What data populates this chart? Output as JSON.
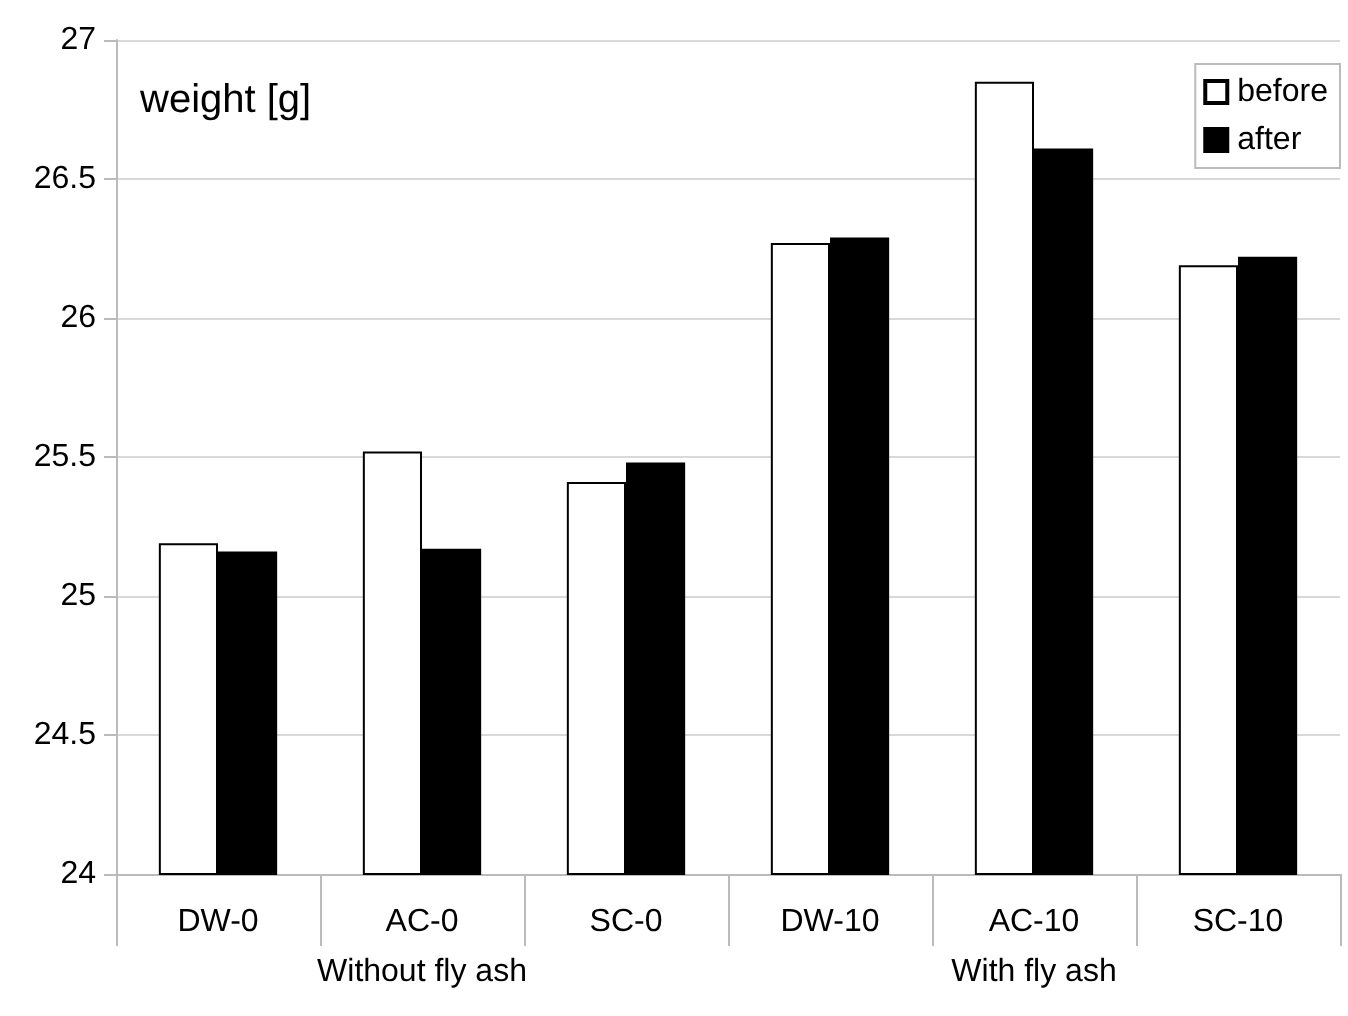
{
  "chart_data": {
    "type": "bar",
    "ylabel": "weight [g]",
    "categories": [
      "DW-0",
      "AC-0",
      "SC-0",
      "DW-10",
      "AC-10",
      "SC-10"
    ],
    "series": [
      {
        "name": "before",
        "color": "#ffffff",
        "values": [
          25.19,
          25.52,
          25.41,
          26.27,
          26.85,
          26.19
        ]
      },
      {
        "name": "after",
        "color": "#000000",
        "values": [
          25.16,
          25.17,
          25.48,
          26.29,
          26.61,
          26.22
        ]
      }
    ],
    "ylim": [
      24,
      27
    ],
    "yticks": [
      24,
      24.5,
      25,
      25.5,
      26,
      26.5,
      27
    ],
    "grid": "y",
    "legend": "top right",
    "annotations": [
      "Without fly ash",
      "With fly ash"
    ]
  }
}
